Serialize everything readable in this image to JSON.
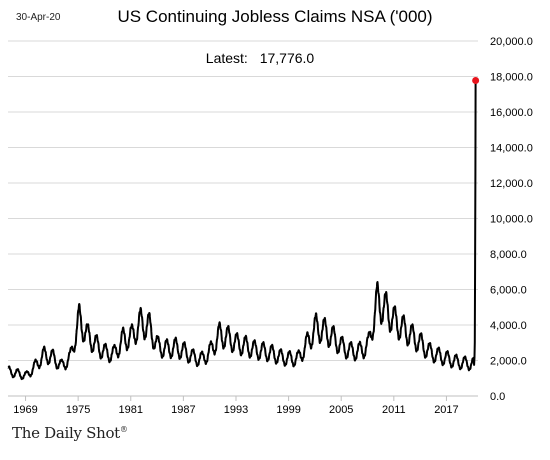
{
  "header": {
    "date": "30-Apr-20",
    "title": "US Continuing Jobless Claims NSA ('000)",
    "latest_label": "Latest:",
    "latest_value": "17,776.0"
  },
  "footer": {
    "brand": "The Daily Shot",
    "brand_mark": "®"
  },
  "colors": {
    "line": "#000000",
    "latest_point": "#e8141c",
    "grid": "#d9d9d9"
  },
  "chart_data": {
    "type": "line",
    "title": "US Continuing Jobless Claims NSA ('000)",
    "xlabel": "",
    "ylabel": "",
    "xlim": [
      1967.0,
      2020.6
    ],
    "ylim": [
      0,
      20000
    ],
    "y_axis_side": "right",
    "grid": "horizontal",
    "x_ticks": [
      1969,
      1975,
      1981,
      1987,
      1993,
      1999,
      2005,
      2011,
      2017
    ],
    "x_tick_labels": [
      "1969",
      "1975",
      "1981",
      "1987",
      "1993",
      "1999",
      "2005",
      "2011",
      "2017"
    ],
    "y_ticks": [
      0,
      2000,
      4000,
      6000,
      8000,
      10000,
      12000,
      14000,
      16000,
      18000,
      20000
    ],
    "y_tick_labels": [
      "0.0",
      "2,000.0",
      "4,000.0",
      "6,000.0",
      "8,000.0",
      "10,000.0",
      "12,000.0",
      "14,000.0",
      "16,000.0",
      "18,000.0",
      "20,000.0"
    ],
    "seasonal_amplitude": 0.32,
    "annual_peaks_x": [
      1967.1,
      1968.1,
      1969.1,
      1970.1,
      1971.1,
      1972.1,
      1973.1,
      1974.1,
      1975.1,
      1976.1,
      1977.1,
      1978.1,
      1979.1,
      1980.1,
      1981.1,
      1982.1,
      1983.1,
      1984.1,
      1985.1,
      1986.1,
      1987.1,
      1988.1,
      1989.1,
      1990.1,
      1991.1,
      1992.1,
      1993.1,
      1994.1,
      1995.1,
      1996.1,
      1997.1,
      1998.1,
      1999.1,
      2000.1,
      2001.1,
      2002.1,
      2003.1,
      2004.1,
      2005.1,
      2006.1,
      2007.1,
      2008.1,
      2009.1,
      2010.1,
      2011.1,
      2012.1,
      2013.1,
      2014.1,
      2015.1,
      2016.1,
      2017.1,
      2018.1,
      2019.1,
      2020.1
    ],
    "annual_peaks_y": [
      1650,
      1500,
      1350,
      2000,
      2750,
      2600,
      2000,
      2550,
      5150,
      4000,
      3400,
      2900,
      2800,
      3800,
      3950,
      4900,
      4650,
      3300,
      3150,
      3250,
      3000,
      2600,
      2450,
      3000,
      4100,
      3900,
      3500,
      3350,
      3100,
      3000,
      2850,
      2600,
      2500,
      2500,
      3500,
      4600,
      4350,
      3900,
      3300,
      3000,
      3000,
      3400,
      6350,
      5800,
      5000,
      4500,
      4000,
      3500,
      2950,
      2700,
      2500,
      2300,
      2200,
      2150
    ],
    "series": [
      {
        "x": [
          2020.1,
          2020.16,
          2020.2,
          2020.24,
          2020.27,
          2020.3,
          2020.33
        ],
        "y": [
          2150,
          1750,
          2200,
          3030,
          7450,
          12480,
          17776
        ]
      }
    ],
    "latest_point": {
      "x": 2020.33,
      "y": 17776
    }
  }
}
